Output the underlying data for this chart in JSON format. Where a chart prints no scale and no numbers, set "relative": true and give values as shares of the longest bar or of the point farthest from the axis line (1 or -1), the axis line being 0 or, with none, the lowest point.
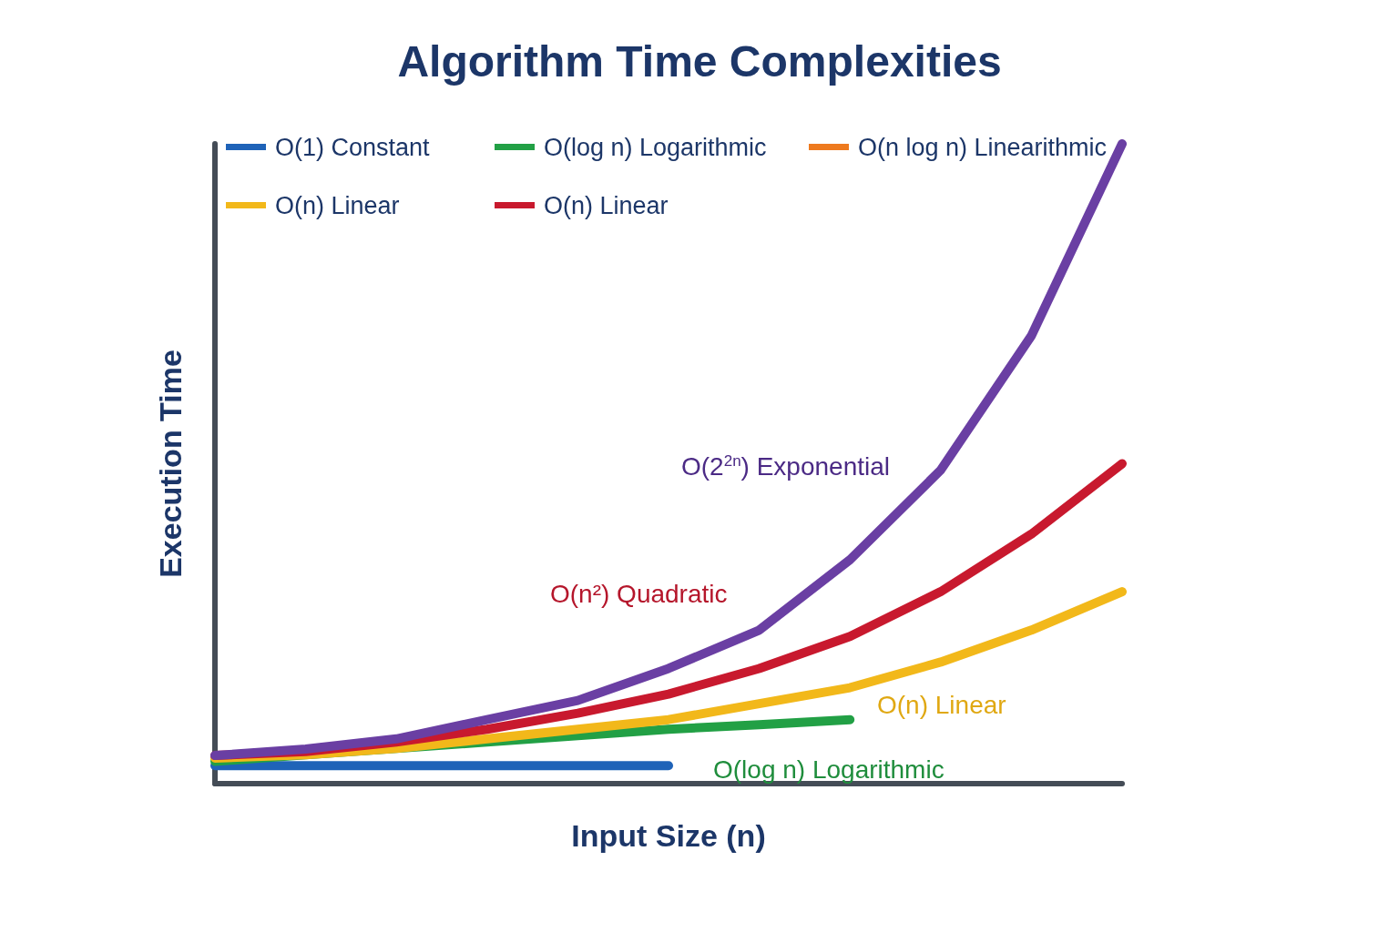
{
  "chart_data": {
    "type": "line",
    "title": "Algorithm Time Complexities",
    "xlabel": "Input Size (n)",
    "ylabel": "Execution Time",
    "relative": true,
    "legend": "top left",
    "grid": false,
    "marker": "none",
    "line_style": "solid",
    "categories": [
      null,
      null,
      null,
      null,
      null,
      null,
      null,
      null,
      null,
      null,
      null
    ],
    "series": [
      {
        "name": "O(1) Constant",
        "color": "#1f63b8",
        "values": [
          0.028,
          0.028,
          0.028,
          0.028,
          0.028,
          0.028,
          null,
          null,
          null,
          null,
          null
        ]
      },
      {
        "name": "O(log n) Logarithmic",
        "color": "#22a045",
        "values": [
          0.035,
          0.045,
          0.055,
          0.065,
          0.075,
          0.085,
          0.092,
          0.1,
          null,
          null,
          null
        ]
      },
      {
        "name": "O(n log n) Linearithmic",
        "color": "#ee7a1e",
        "values": [
          null,
          null,
          null,
          null,
          null,
          null,
          null,
          null,
          null,
          null,
          null
        ]
      },
      {
        "name": "O(n) Linear",
        "color": "#f2b81a",
        "values": [
          0.04,
          0.045,
          0.055,
          0.07,
          0.085,
          0.1,
          0.125,
          0.15,
          0.19,
          0.24,
          0.3
        ]
      },
      {
        "name": "O(n) Linear",
        "color": "#c8192e",
        "values": [
          0.044,
          0.05,
          0.065,
          0.085,
          0.11,
          0.14,
          0.18,
          0.23,
          0.3,
          0.39,
          0.5
        ]
      },
      {
        "color": "#6a3fa3",
        "values": [
          0.044,
          0.054,
          0.07,
          0.1,
          0.13,
          0.18,
          0.24,
          0.35,
          0.49,
          0.7,
          1
        ]
      }
    ],
    "annotations": [
      "O(2$^{2n}$) Exponential",
      "O(n²) Quadratic",
      "O(n) Linear",
      "O(log n) Logarithmic"
    ]
  }
}
